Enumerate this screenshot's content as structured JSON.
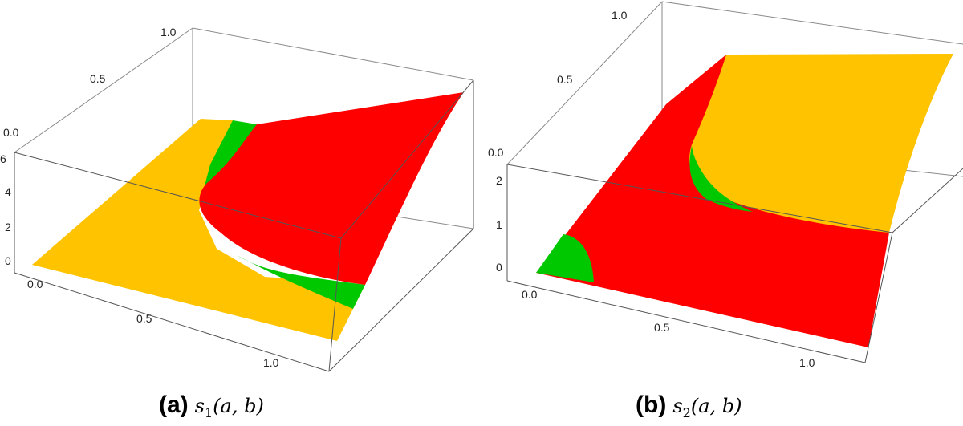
{
  "panels": [
    {
      "caption_tag": "(a)",
      "caption_math": {
        "base": "s",
        "sub": "1",
        "args": "(a, b)"
      },
      "back_axis_ticks": [
        "0.0",
        "0.5",
        "1.0"
      ],
      "vertical_axis_ticks": [
        "0",
        "2",
        "4",
        "6"
      ],
      "front_axis_ticks": [
        "0.0",
        "0.5",
        "1.0"
      ]
    },
    {
      "caption_tag": "(b)",
      "caption_math": {
        "base": "s",
        "sub": "2",
        "args": "(a, b)"
      },
      "back_axis_ticks": [
        "0.0",
        "0.5",
        "1.0"
      ],
      "vertical_axis_ticks": [
        "0",
        "1",
        "2"
      ],
      "front_axis_ticks": [
        "0.0",
        "0.5",
        "1.0"
      ]
    }
  ],
  "colors": {
    "yellow": "#FFC300",
    "red": "#FF0000",
    "green": "#00CC00",
    "box": "#555555"
  }
}
